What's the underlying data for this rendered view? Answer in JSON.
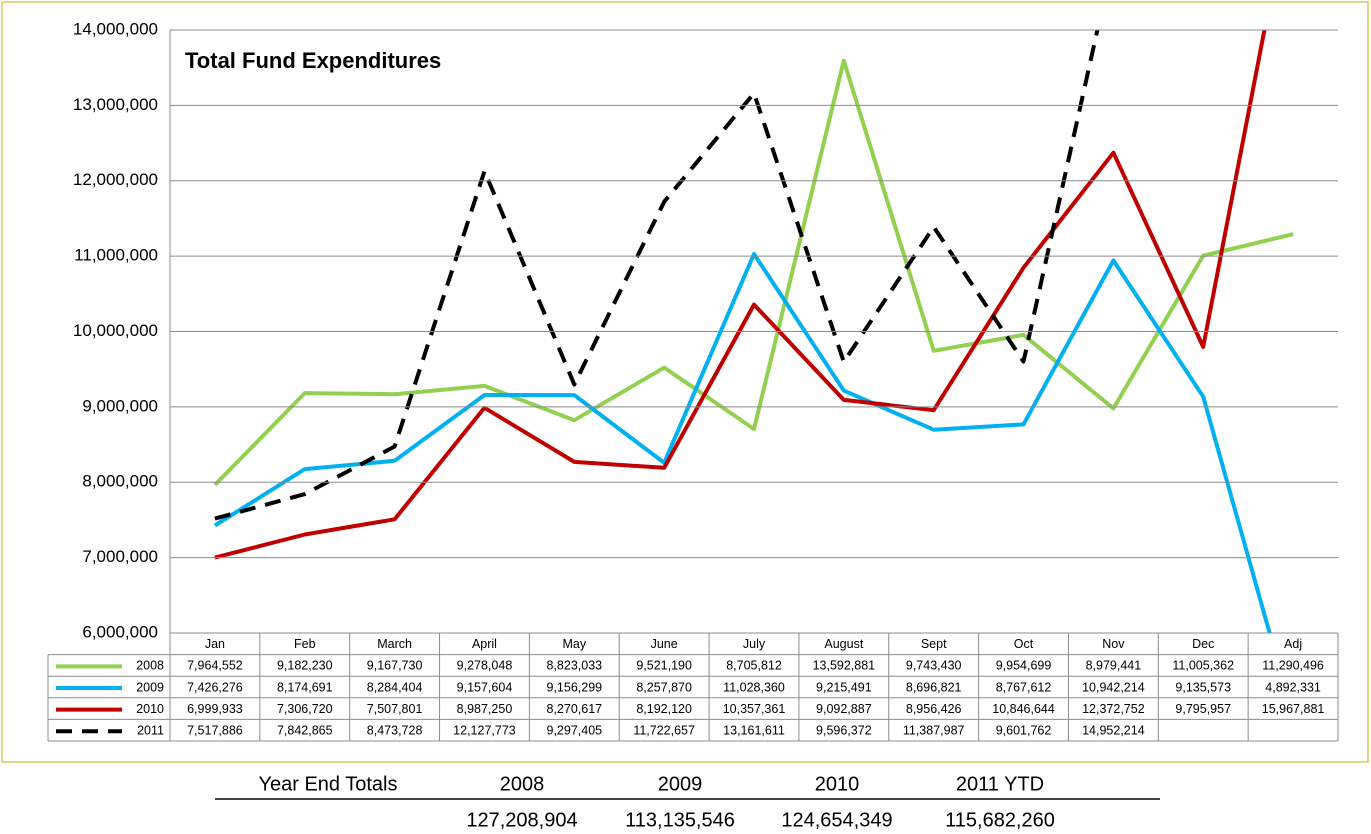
{
  "chart_data": {
    "type": "line",
    "title": "Total Fund Expenditures",
    "categories": [
      "Jan",
      "Feb",
      "March",
      "April",
      "May",
      "June",
      "July",
      "August",
      "Sept",
      "Oct",
      "Nov",
      "Dec",
      "Adj"
    ],
    "ylim": [
      6000000,
      14000000
    ],
    "yticks": [
      {
        "value": 6000000,
        "label": "6,000,000"
      },
      {
        "value": 7000000,
        "label": "7,000,000"
      },
      {
        "value": 8000000,
        "label": "8,000,000"
      },
      {
        "value": 9000000,
        "label": "9,000,000"
      },
      {
        "value": 10000000,
        "label": "10,000,000"
      },
      {
        "value": 11000000,
        "label": "11,000,000"
      },
      {
        "value": 12000000,
        "label": "12,000,000"
      },
      {
        "value": 13000000,
        "label": "13,000,000"
      },
      {
        "value": 14000000,
        "label": "14,000,000"
      }
    ],
    "grid": true,
    "series": [
      {
        "name": "2008",
        "color": "#92d050",
        "dashed": false,
        "values": [
          7964552,
          9182230,
          9167730,
          9278048,
          8823033,
          9521190,
          8705812,
          13592881,
          9743430,
          9954699,
          8979441,
          11005362,
          11290496
        ],
        "value_labels": [
          "7,964,552",
          "9,182,230",
          "9,167,730",
          "9,278,048",
          "8,823,033",
          "9,521,190",
          "8,705,812",
          "13,592,881",
          "9,743,430",
          "9,954,699",
          "8,979,441",
          "11,005,362",
          "11,290,496"
        ]
      },
      {
        "name": "2009",
        "color": "#00b0f0",
        "dashed": false,
        "values": [
          7426276,
          8174691,
          8284404,
          9157604,
          9156299,
          8257870,
          11028360,
          9215491,
          8696821,
          8767612,
          10942214,
          9135573,
          4892331
        ],
        "value_labels": [
          "7,426,276",
          "8,174,691",
          "8,284,404",
          "9,157,604",
          "9,156,299",
          "8,257,870",
          "11,028,360",
          "9,215,491",
          "8,696,821",
          "8,767,612",
          "10,942,214",
          "9,135,573",
          "4,892,331"
        ]
      },
      {
        "name": "2010",
        "color": "#c00000",
        "dashed": false,
        "values": [
          6999933,
          7306720,
          7507801,
          8987250,
          8270617,
          8192120,
          10357361,
          9092887,
          8956426,
          10846644,
          12372752,
          9795957,
          15967881
        ],
        "value_labels": [
          "6,999,933",
          "7,306,720",
          "7,507,801",
          "8,987,250",
          "8,270,617",
          "8,192,120",
          "10,357,361",
          "9,092,887",
          "8,956,426",
          "10,846,644",
          "12,372,752",
          "9,795,957",
          "15,967,881"
        ]
      },
      {
        "name": "2011",
        "color": "#000000",
        "dashed": true,
        "values": [
          7517886,
          7842865,
          8473728,
          12127773,
          9297405,
          11722657,
          13161611,
          9596372,
          11387987,
          9601762,
          14952214,
          null,
          null
        ],
        "value_labels": [
          "7,517,886",
          "7,842,865",
          "8,473,728",
          "12,127,773",
          "9,297,405",
          "11,722,657",
          "13,161,611",
          "9,596,372",
          "11,387,987",
          "9,601,762",
          "14,952,214",
          null,
          null
        ]
      }
    ]
  },
  "totals": {
    "title": "Year End Totals",
    "headers": [
      "2008",
      "2009",
      "2010",
      "2011 YTD"
    ],
    "values": [
      "127,208,904",
      "113,135,546",
      "124,654,349",
      "115,682,260"
    ]
  }
}
